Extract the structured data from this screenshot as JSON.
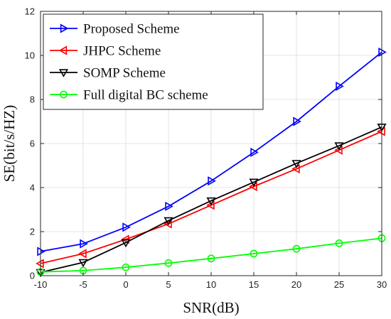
{
  "chart_data": {
    "type": "line",
    "title": "",
    "xlabel": "SNR(dB)",
    "ylabel": "SE(bit/s/HZ)",
    "x": [
      -10,
      -5,
      0,
      5,
      10,
      15,
      20,
      25,
      30
    ],
    "xlim": [
      -10,
      30
    ],
    "ylim": [
      0,
      12
    ],
    "xticks": [
      -10,
      -5,
      0,
      5,
      10,
      15,
      20,
      25,
      30
    ],
    "yticks": [
      0,
      2,
      4,
      6,
      8,
      10,
      12
    ],
    "grid": true,
    "legend_position": "top-left",
    "series": [
      {
        "name": "Proposed Scheme",
        "color": "#0000ff",
        "marker": "triangle-right",
        "values": [
          1.1,
          1.45,
          2.2,
          3.15,
          4.3,
          5.6,
          7.0,
          8.6,
          10.15
        ]
      },
      {
        "name": "JHPC Scheme",
        "color": "#ff0000",
        "marker": "triangle-left",
        "values": [
          0.55,
          1.0,
          1.65,
          2.35,
          3.2,
          4.05,
          4.85,
          5.7,
          6.55
        ]
      },
      {
        "name": "SOMP Scheme",
        "color": "#000000",
        "marker": "triangle-down",
        "values": [
          0.15,
          0.6,
          1.5,
          2.5,
          3.4,
          4.25,
          5.1,
          5.9,
          6.75
        ]
      },
      {
        "name": "Full digital BC scheme",
        "color": "#00ff00",
        "marker": "circle",
        "values": [
          0.17,
          0.23,
          0.38,
          0.57,
          0.78,
          1.0,
          1.22,
          1.47,
          1.7
        ]
      }
    ]
  }
}
